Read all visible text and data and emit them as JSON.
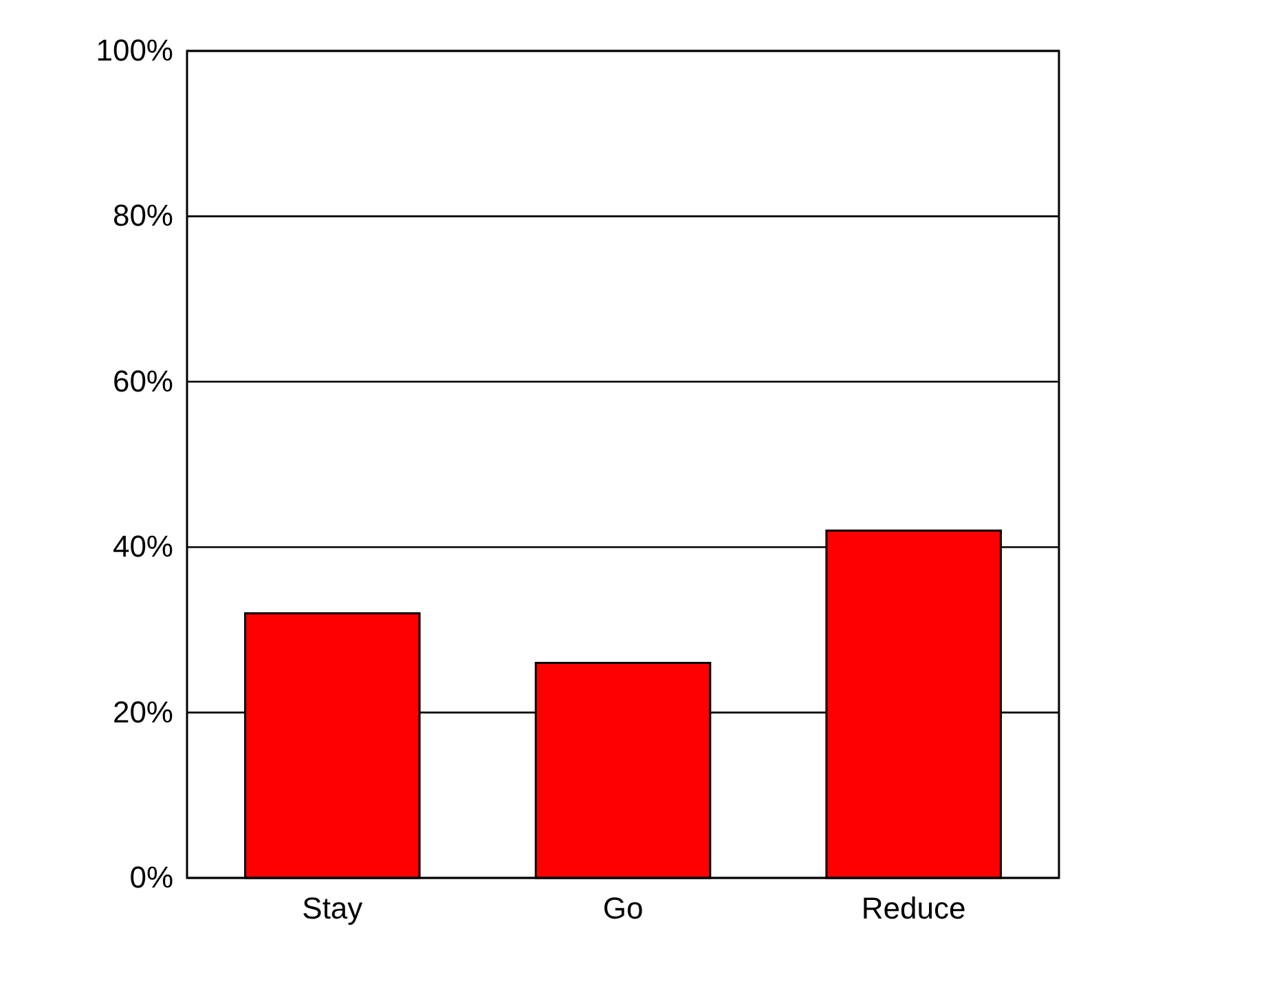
{
  "chart_data": {
    "type": "bar",
    "categories": [
      "Stay",
      "Go",
      "Reduce"
    ],
    "values": [
      32,
      26,
      42
    ],
    "color": "#ff0000",
    "ylim": [
      0,
      100
    ],
    "yticks": [
      {
        "value": 0,
        "label": "0%"
      },
      {
        "value": 20,
        "label": "20%"
      },
      {
        "value": 40,
        "label": "40%"
      },
      {
        "value": 60,
        "label": "60%"
      },
      {
        "value": 80,
        "label": "80%"
      },
      {
        "value": 100,
        "label": "100%"
      }
    ],
    "grid": "y"
  }
}
